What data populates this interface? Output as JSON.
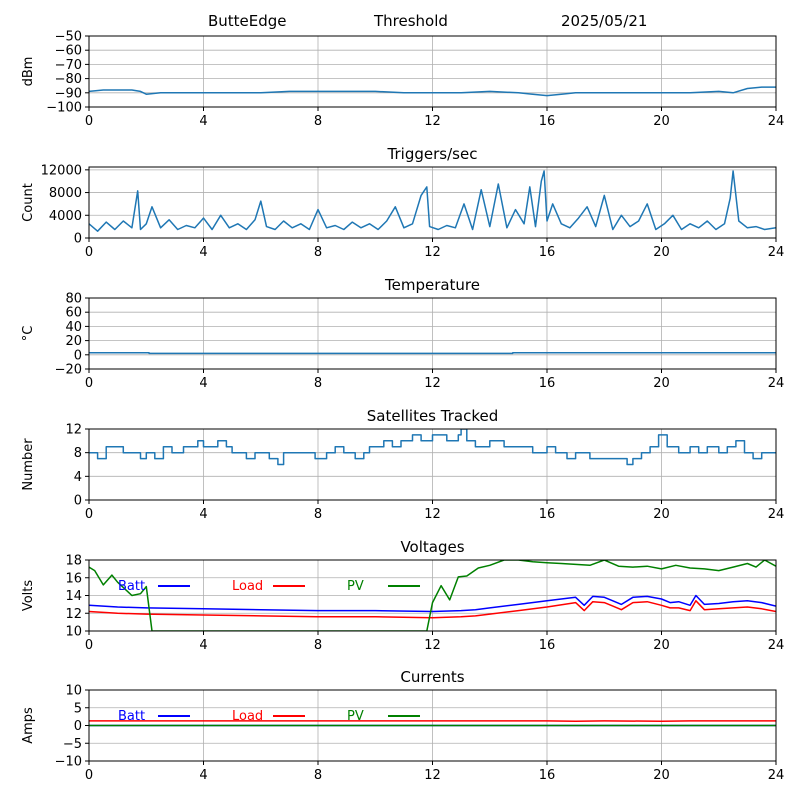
{
  "header": {
    "station": "ButteEdge",
    "mode": "Threshold",
    "date": "2025/05/21"
  },
  "chart_data": [
    {
      "id": "threshold",
      "type": "line",
      "title": "",
      "ylabel": "dBm",
      "xlim": [
        0,
        24
      ],
      "ylim": [
        -100,
        -50
      ],
      "xticks": [
        0,
        4,
        8,
        12,
        16,
        20,
        24
      ],
      "yticks": [
        -100,
        -90,
        -80,
        -70,
        -60,
        -50
      ],
      "ytick_labels": [
        "−100",
        "−90",
        "−80",
        "−70",
        "−60",
        "−50"
      ],
      "grid": true,
      "series": [
        {
          "color": "#1f77b4",
          "x": [
            0,
            0.5,
            1,
            1.5,
            1.8,
            2,
            2.5,
            3,
            4,
            5,
            6,
            7,
            8,
            9,
            10,
            11,
            12,
            13,
            14,
            15,
            15.5,
            16,
            16.5,
            17,
            18,
            19,
            20,
            21,
            22,
            22.5,
            23,
            23.5,
            24
          ],
          "y": [
            -89,
            -88,
            -88,
            -88,
            -89,
            -91,
            -90,
            -90,
            -90,
            -90,
            -90,
            -89,
            -89,
            -89,
            -89,
            -90,
            -90,
            -90,
            -89,
            -90,
            -91,
            -92,
            -91,
            -90,
            -90,
            -90,
            -90,
            -90,
            -89,
            -90,
            -87,
            -86,
            -86
          ]
        }
      ]
    },
    {
      "id": "triggers",
      "type": "line",
      "title": "Triggers/sec",
      "ylabel": "Count",
      "xlim": [
        0,
        24
      ],
      "ylim": [
        0,
        12500
      ],
      "xticks": [
        0,
        4,
        8,
        12,
        16,
        20,
        24
      ],
      "yticks": [
        0,
        4000,
        8000,
        12000
      ],
      "ytick_labels": [
        "0",
        "4000",
        "8000",
        "12000"
      ],
      "grid": true,
      "series": [
        {
          "color": "#1f77b4",
          "x": [
            0,
            0.3,
            0.6,
            0.9,
            1.2,
            1.5,
            1.7,
            1.8,
            2.0,
            2.2,
            2.5,
            2.8,
            3.1,
            3.4,
            3.7,
            4.0,
            4.3,
            4.6,
            4.9,
            5.2,
            5.5,
            5.8,
            6.0,
            6.2,
            6.5,
            6.8,
            7.1,
            7.4,
            7.7,
            8.0,
            8.3,
            8.6,
            8.9,
            9.2,
            9.5,
            9.8,
            10.1,
            10.4,
            10.7,
            11.0,
            11.3,
            11.6,
            11.8,
            11.9,
            12.2,
            12.5,
            12.8,
            13.1,
            13.4,
            13.7,
            14.0,
            14.3,
            14.6,
            14.9,
            15.2,
            15.4,
            15.6,
            15.8,
            15.9,
            16.0,
            16.2,
            16.5,
            16.8,
            17.1,
            17.4,
            17.7,
            18.0,
            18.3,
            18.6,
            18.9,
            19.2,
            19.5,
            19.8,
            20.1,
            20.4,
            20.7,
            21.0,
            21.3,
            21.6,
            21.9,
            22.2,
            22.4,
            22.5,
            22.7,
            23.0,
            23.3,
            23.6,
            24.0
          ],
          "y": [
            2500,
            1200,
            2800,
            1500,
            3000,
            1800,
            8300,
            1500,
            2500,
            5500,
            1800,
            3200,
            1500,
            2200,
            1800,
            3500,
            1500,
            4000,
            1800,
            2500,
            1500,
            3200,
            6500,
            2000,
            1500,
            3000,
            1800,
            2500,
            1500,
            5000,
            1800,
            2200,
            1500,
            2800,
            1800,
            2500,
            1500,
            3000,
            5500,
            1800,
            2500,
            7500,
            9000,
            2000,
            1500,
            2200,
            1800,
            6000,
            1500,
            8500,
            2000,
            9500,
            1800,
            5000,
            2500,
            9000,
            2000,
            10000,
            11800,
            3000,
            6000,
            2500,
            1800,
            3500,
            5500,
            2000,
            7500,
            1500,
            4000,
            2000,
            3000,
            6000,
            1500,
            2500,
            4000,
            1500,
            2500,
            1800,
            3000,
            1500,
            2500,
            7000,
            11800,
            3000,
            1800,
            2000,
            1500,
            1800
          ]
        }
      ]
    },
    {
      "id": "temperature",
      "type": "line",
      "title": "Temperature",
      "ylabel": "°C",
      "xlim": [
        0,
        24
      ],
      "ylim": [
        -20,
        80
      ],
      "xticks": [
        0,
        4,
        8,
        12,
        16,
        20,
        24
      ],
      "yticks": [
        -20,
        0,
        20,
        40,
        60,
        80
      ],
      "ytick_labels": [
        "−20",
        "0",
        "20",
        "40",
        "60",
        "80"
      ],
      "grid": true,
      "series": [
        {
          "color": "#1f77b4",
          "x": [
            0,
            2.1,
            2.1,
            14.8,
            14.8,
            24
          ],
          "y": [
            3,
            3,
            2,
            2,
            3,
            3
          ]
        }
      ]
    },
    {
      "id": "satellites",
      "type": "line",
      "title": "Satellites Tracked",
      "ylabel": "Number",
      "xlim": [
        0,
        24
      ],
      "ylim": [
        0,
        12
      ],
      "xticks": [
        0,
        4,
        8,
        12,
        16,
        20,
        24
      ],
      "yticks": [
        0,
        4,
        8,
        12
      ],
      "ytick_labels": [
        "0",
        "4",
        "8",
        "12"
      ],
      "grid": true,
      "series": [
        {
          "color": "#1f77b4",
          "step": true,
          "x": [
            0,
            0.3,
            0.6,
            1.2,
            1.8,
            2.0,
            2.3,
            2.6,
            2.9,
            3.3,
            3.8,
            4.0,
            4.5,
            4.8,
            5.0,
            5.5,
            5.8,
            6.3,
            6.6,
            6.8,
            7.5,
            7.9,
            8.3,
            8.6,
            8.9,
            9.3,
            9.6,
            9.8,
            10.3,
            10.6,
            10.9,
            11.3,
            11.6,
            12.0,
            12.5,
            12.9,
            13.0,
            13.2,
            13.5,
            14.0,
            14.5,
            15.0,
            15.5,
            16.0,
            16.3,
            16.7,
            17.0,
            17.5,
            18.0,
            18.5,
            18.8,
            19.0,
            19.3,
            19.6,
            19.9,
            20.2,
            20.6,
            21.0,
            21.3,
            21.6,
            22.0,
            22.3,
            22.6,
            22.9,
            23.2,
            23.5,
            24.0
          ],
          "y": [
            8,
            7,
            9,
            8,
            7,
            8,
            7,
            9,
            8,
            9,
            10,
            9,
            10,
            9,
            8,
            7,
            8,
            7,
            6,
            8,
            8,
            7,
            8,
            9,
            8,
            7,
            8,
            9,
            10,
            9,
            10,
            11,
            10,
            11,
            10,
            11,
            12,
            10,
            9,
            10,
            9,
            9,
            8,
            9,
            8,
            7,
            8,
            7,
            7,
            7,
            6,
            7,
            8,
            9,
            11,
            9,
            8,
            9,
            8,
            9,
            8,
            9,
            10,
            8,
            7,
            8,
            8
          ]
        }
      ]
    },
    {
      "id": "voltages",
      "type": "line",
      "title": "Voltages",
      "ylabel": "Volts",
      "xlim": [
        0,
        24
      ],
      "ylim": [
        10,
        18
      ],
      "xticks": [
        0,
        4,
        8,
        12,
        16,
        20,
        24
      ],
      "yticks": [
        10,
        12,
        14,
        16,
        18
      ],
      "ytick_labels": [
        "10",
        "12",
        "14",
        "16",
        "18"
      ],
      "grid": true,
      "legend": [
        "Batt",
        "Load",
        "PV"
      ],
      "series": [
        {
          "name": "Batt",
          "color": "#0000ff",
          "x": [
            0,
            0.5,
            1,
            2,
            4,
            6,
            8,
            10,
            12,
            13,
            13.5,
            14,
            15,
            16,
            17,
            17.3,
            17.6,
            18,
            18.3,
            18.6,
            19,
            19.5,
            20,
            20.3,
            20.6,
            21,
            21.2,
            21.5,
            22,
            22.5,
            23,
            23.5,
            24
          ],
          "y": [
            12.9,
            12.8,
            12.7,
            12.6,
            12.5,
            12.4,
            12.3,
            12.3,
            12.2,
            12.3,
            12.4,
            12.6,
            13.0,
            13.4,
            13.8,
            12.9,
            13.9,
            13.8,
            13.4,
            13.0,
            13.8,
            13.9,
            13.6,
            13.2,
            13.3,
            12.9,
            14.0,
            13.0,
            13.1,
            13.3,
            13.4,
            13.2,
            12.8
          ]
        },
        {
          "name": "Load",
          "color": "#ff0000",
          "x": [
            0,
            0.5,
            1,
            2,
            4,
            6,
            8,
            10,
            12,
            13,
            13.5,
            14,
            15,
            16,
            17,
            17.3,
            17.6,
            18,
            18.3,
            18.6,
            19,
            19.5,
            20,
            20.3,
            20.6,
            21,
            21.2,
            21.5,
            22,
            22.5,
            23,
            23.5,
            24
          ],
          "y": [
            12.2,
            12.1,
            12.0,
            11.9,
            11.8,
            11.7,
            11.6,
            11.6,
            11.5,
            11.6,
            11.7,
            11.9,
            12.3,
            12.7,
            13.2,
            12.3,
            13.3,
            13.2,
            12.8,
            12.4,
            13.2,
            13.3,
            12.9,
            12.6,
            12.6,
            12.3,
            13.4,
            12.4,
            12.5,
            12.6,
            12.7,
            12.5,
            12.2
          ]
        },
        {
          "name": "PV",
          "color": "#008000",
          "x": [
            0,
            0.2,
            0.5,
            0.8,
            1.0,
            1.5,
            1.8,
            2.0,
            2.2,
            11.8,
            12.0,
            12.3,
            12.6,
            12.9,
            13.2,
            13.6,
            14.0,
            14.5,
            15.0,
            15.5,
            16.0,
            16.5,
            17.0,
            17.5,
            18.0,
            18.5,
            19.0,
            19.5,
            20.0,
            20.5,
            21.0,
            21.5,
            22.0,
            22.5,
            23.0,
            23.3,
            23.6,
            24.0
          ],
          "y": [
            17.2,
            16.8,
            15.2,
            16.3,
            15.5,
            14.0,
            14.2,
            15.0,
            10.0,
            10.0,
            13.2,
            15.1,
            13.5,
            16.1,
            16.2,
            17.1,
            17.4,
            18.0,
            18.0,
            17.8,
            17.7,
            17.6,
            17.5,
            17.4,
            18.0,
            17.3,
            17.2,
            17.3,
            17.0,
            17.4,
            17.1,
            17.0,
            16.8,
            17.2,
            17.6,
            17.2,
            18.0,
            17.3
          ]
        }
      ]
    },
    {
      "id": "currents",
      "type": "line",
      "title": "Currents",
      "ylabel": "Amps",
      "xlim": [
        0,
        24
      ],
      "ylim": [
        -10,
        10
      ],
      "xticks": [
        0,
        4,
        8,
        12,
        16,
        20,
        24
      ],
      "yticks": [
        -10,
        -5,
        0,
        5,
        10
      ],
      "ytick_labels": [
        "−10",
        "−5",
        "0",
        "5",
        "10"
      ],
      "grid": true,
      "legend": [
        "Batt",
        "Load",
        "PV"
      ],
      "series": [
        {
          "name": "Batt",
          "color": "#0000ff",
          "x": [
            0,
            24
          ],
          "y": [
            0,
            0
          ]
        },
        {
          "name": "Load",
          "color": "#ff0000",
          "x": [
            0,
            4,
            8,
            12,
            16,
            17,
            18,
            20,
            21,
            22,
            24
          ],
          "y": [
            1.3,
            1.3,
            1.3,
            1.3,
            1.3,
            1.2,
            1.3,
            1.2,
            1.3,
            1.3,
            1.3
          ]
        },
        {
          "name": "PV",
          "color": "#008000",
          "x": [
            0,
            24
          ],
          "y": [
            0,
            0
          ]
        }
      ]
    }
  ]
}
